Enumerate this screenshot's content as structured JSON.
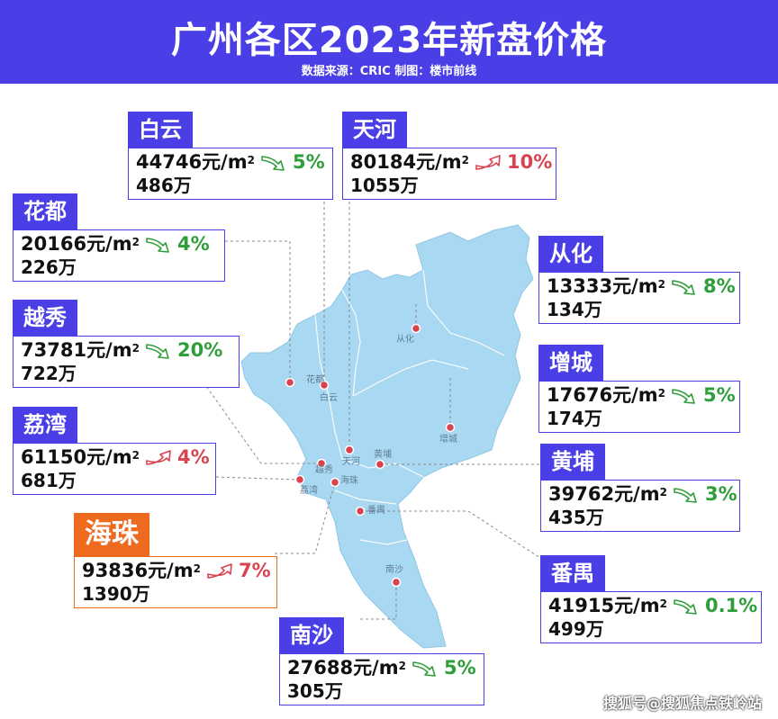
{
  "header": {
    "title": "广州各区2023年新盘价格",
    "subtitle": "数据来源：CRIC 制图：楼市前线"
  },
  "colors": {
    "accent": "#4a3fe6",
    "highlight": "#ee6a1f",
    "map": "#a9d8f2",
    "down": "#2e9e3a",
    "up": "#d9434f"
  },
  "unit": "元/m",
  "unit_sup": "2",
  "districts": [
    {
      "name": "白云",
      "price": "44746",
      "volume": "486万",
      "trend": "down",
      "change": "5%"
    },
    {
      "name": "天河",
      "price": "80184",
      "volume": "1055万",
      "trend": "up",
      "change": "10%"
    },
    {
      "name": "花都",
      "price": "20166",
      "volume": "226万",
      "trend": "down",
      "change": "4%"
    },
    {
      "name": "从化",
      "price": "13333",
      "volume": "134万",
      "trend": "down",
      "change": "8%"
    },
    {
      "name": "越秀",
      "price": "73781",
      "volume": "722万",
      "trend": "down",
      "change": "20%"
    },
    {
      "name": "增城",
      "price": "17676",
      "volume": "174万",
      "trend": "down",
      "change": "5%"
    },
    {
      "name": "荔湾",
      "price": "61150",
      "volume": "681万",
      "trend": "up",
      "change": "4%"
    },
    {
      "name": "黄埔",
      "price": "39762",
      "volume": "435万",
      "trend": "down",
      "change": "3%"
    },
    {
      "name": "海珠",
      "price": "93836",
      "volume": "1390万",
      "trend": "up",
      "change": "7%"
    },
    {
      "name": "番禺",
      "price": "41915",
      "volume": "499万",
      "trend": "down",
      "change": "0.1%"
    },
    {
      "name": "南沙",
      "price": "27688",
      "volume": "305万",
      "trend": "down",
      "change": "5%"
    }
  ],
  "map_labels": [
    "从化",
    "花都",
    "白云",
    "天河",
    "增城",
    "黄埔",
    "越秀",
    "荔湾",
    "海珠",
    "番禺",
    "南沙"
  ],
  "watermark": "搜狐号@搜狐焦点铁岭站"
}
